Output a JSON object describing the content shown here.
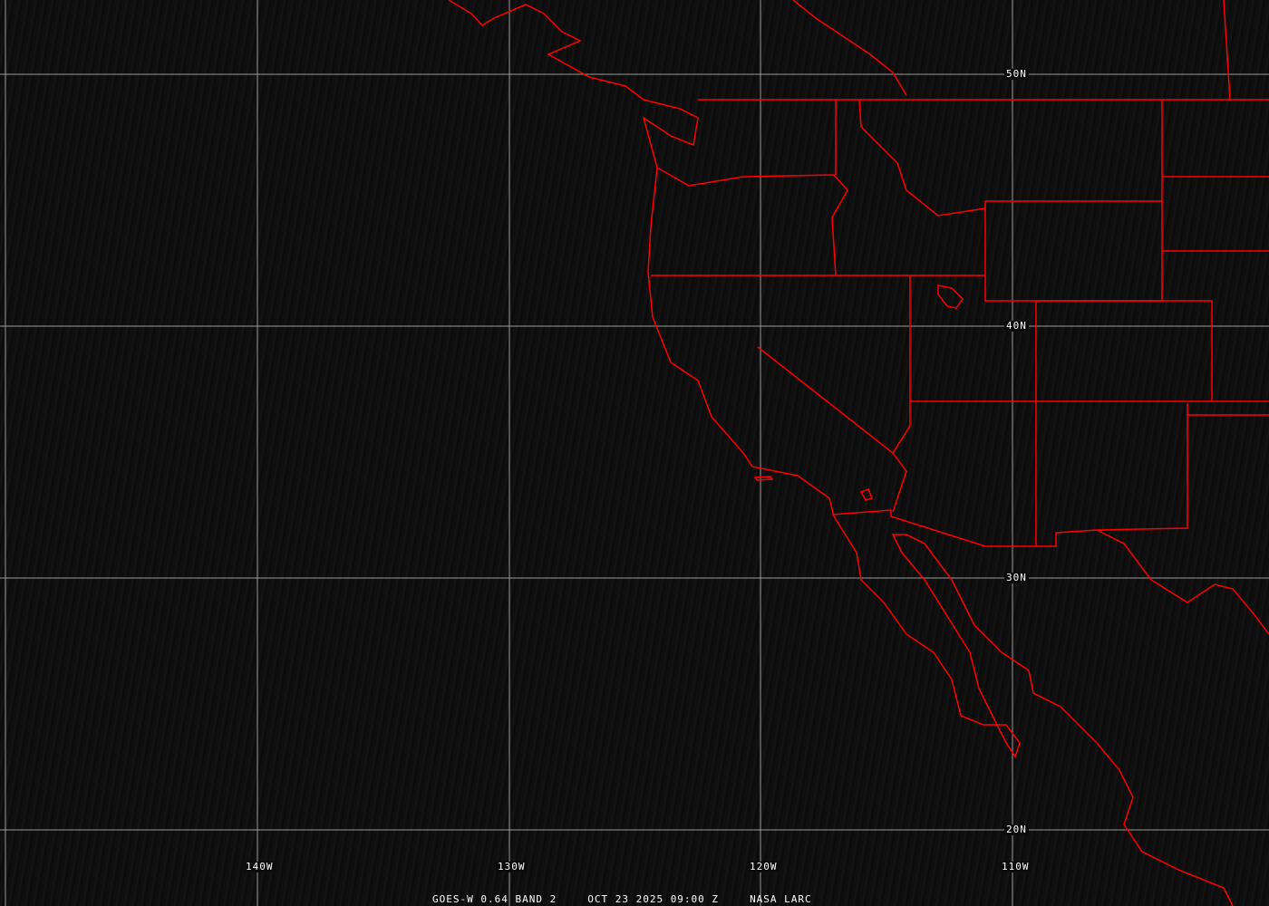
{
  "caption": {
    "satellite": "GOES-W 0.64 BAND 2",
    "datetime": "OCT 23 2025 09:00 Z",
    "source": "NASA LARC"
  },
  "lat_labels": [
    "50N",
    "40N",
    "30N",
    "20N"
  ],
  "lon_labels": [
    "140W",
    "130W",
    "120W",
    "110W"
  ],
  "colors": {
    "borders": "#ff0000",
    "grid": "#9a9a9a",
    "background": "#0b0b0b"
  }
}
